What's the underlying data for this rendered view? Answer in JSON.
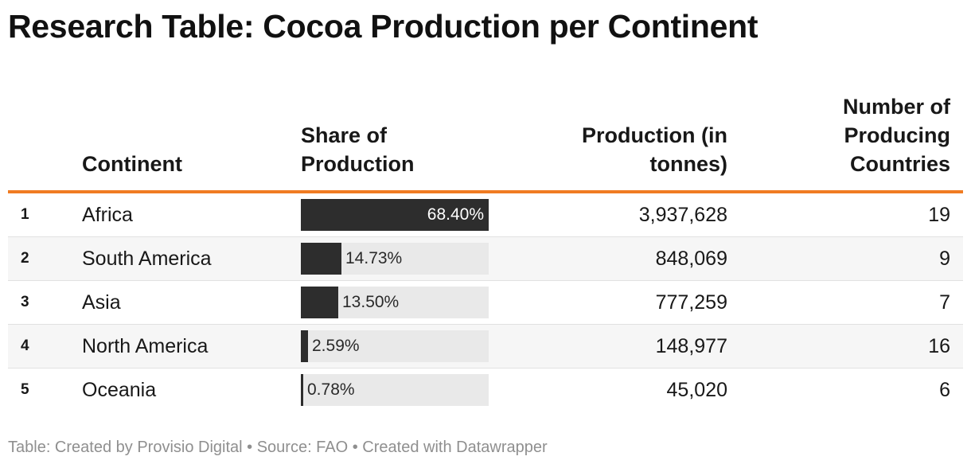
{
  "title": "Research Table: Cocoa Production per Continent",
  "colors": {
    "accent_rule": "#f07c22",
    "bar_fill": "#2d2d2d",
    "bar_track": "#e9e9e9",
    "row_alt": "#f6f6f6"
  },
  "columns": {
    "continent": "Continent",
    "share": "Share of Production",
    "production": "Production (in tonnes)",
    "countries": "Number of Producing Countries"
  },
  "footer": "Table: Created by Provisio Digital • Source: FAO • Created with Datawrapper",
  "chart_data": {
    "type": "table",
    "title": "Research Table: Cocoa Production per Continent",
    "columns": [
      "Continent",
      "Share of Production",
      "Production (in tonnes)",
      "Number of Producing Countries"
    ],
    "share_bar_max": 68.4,
    "rows": [
      {
        "rank": "1",
        "continent": "Africa",
        "share": 68.4,
        "share_label": "68.40%",
        "production": "3,937,628",
        "countries": "19"
      },
      {
        "rank": "2",
        "continent": "South America",
        "share": 14.73,
        "share_label": "14.73%",
        "production": "848,069",
        "countries": "9"
      },
      {
        "rank": "3",
        "continent": "Asia",
        "share": 13.5,
        "share_label": "13.50%",
        "production": "777,259",
        "countries": "7"
      },
      {
        "rank": "4",
        "continent": "North America",
        "share": 2.59,
        "share_label": "2.59%",
        "production": "148,977",
        "countries": "16"
      },
      {
        "rank": "5",
        "continent": "Oceania",
        "share": 0.78,
        "share_label": "0.78%",
        "production": "45,020",
        "countries": "6"
      }
    ]
  }
}
